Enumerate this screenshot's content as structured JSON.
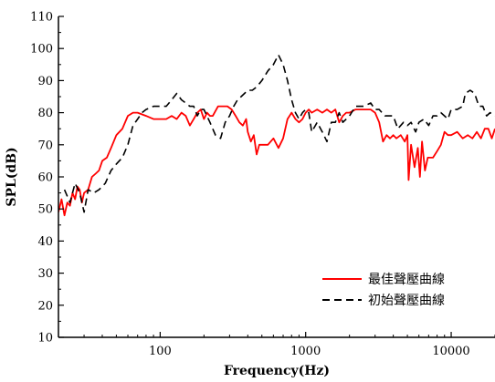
{
  "chart_data": {
    "type": "line",
    "title": "",
    "xlabel": "Frequency(Hz)",
    "ylabel": "SPL(dB)",
    "xscale": "log",
    "xlim": [
      20,
      20000
    ],
    "ylim": [
      10,
      110
    ],
    "x_ticks": [
      {
        "value": 100,
        "label": "100"
      },
      {
        "value": 1000,
        "label": "1000"
      },
      {
        "value": 10000,
        "label": "10000"
      }
    ],
    "y_ticks": [
      10,
      20,
      30,
      40,
      50,
      60,
      70,
      80,
      90,
      100,
      110
    ],
    "grid": false,
    "legend_position": "bottom-right",
    "series": [
      {
        "name": "最佳聲壓曲線",
        "color": "#ff0000",
        "dash": "solid",
        "points": [
          [
            20,
            49
          ],
          [
            21,
            53
          ],
          [
            22,
            48
          ],
          [
            23,
            52
          ],
          [
            24,
            51
          ],
          [
            25,
            55
          ],
          [
            26,
            53
          ],
          [
            27,
            57
          ],
          [
            28,
            56
          ],
          [
            29,
            52
          ],
          [
            30,
            55
          ],
          [
            32,
            56
          ],
          [
            34,
            60
          ],
          [
            36,
            61
          ],
          [
            38,
            62
          ],
          [
            40,
            65
          ],
          [
            43,
            66
          ],
          [
            46,
            69
          ],
          [
            50,
            73
          ],
          [
            55,
            75
          ],
          [
            60,
            79
          ],
          [
            65,
            80
          ],
          [
            70,
            80
          ],
          [
            80,
            79
          ],
          [
            90,
            78
          ],
          [
            100,
            78
          ],
          [
            110,
            78
          ],
          [
            120,
            79
          ],
          [
            130,
            78
          ],
          [
            140,
            80
          ],
          [
            150,
            79
          ],
          [
            160,
            76
          ],
          [
            170,
            78
          ],
          [
            180,
            80
          ],
          [
            190,
            81
          ],
          [
            200,
            78
          ],
          [
            210,
            80
          ],
          [
            220,
            79
          ],
          [
            230,
            79
          ],
          [
            250,
            82
          ],
          [
            270,
            82
          ],
          [
            290,
            82
          ],
          [
            310,
            81
          ],
          [
            330,
            79
          ],
          [
            350,
            77
          ],
          [
            370,
            76
          ],
          [
            390,
            78
          ],
          [
            400,
            74
          ],
          [
            420,
            71
          ],
          [
            440,
            73
          ],
          [
            460,
            67
          ],
          [
            480,
            70
          ],
          [
            500,
            70
          ],
          [
            550,
            70
          ],
          [
            600,
            72
          ],
          [
            650,
            69
          ],
          [
            700,
            72
          ],
          [
            750,
            78
          ],
          [
            800,
            80
          ],
          [
            850,
            78
          ],
          [
            900,
            77
          ],
          [
            950,
            78
          ],
          [
            1000,
            80
          ],
          [
            1050,
            81
          ],
          [
            1100,
            80
          ],
          [
            1200,
            81
          ],
          [
            1300,
            80
          ],
          [
            1400,
            81
          ],
          [
            1500,
            80
          ],
          [
            1600,
            81
          ],
          [
            1700,
            77
          ],
          [
            1800,
            79
          ],
          [
            1900,
            80
          ],
          [
            2000,
            80
          ],
          [
            2200,
            81
          ],
          [
            2500,
            81
          ],
          [
            2800,
            81
          ],
          [
            3000,
            80
          ],
          [
            3200,
            77
          ],
          [
            3400,
            71
          ],
          [
            3600,
            73
          ],
          [
            3800,
            72
          ],
          [
            4000,
            73
          ],
          [
            4200,
            72
          ],
          [
            4500,
            73
          ],
          [
            4800,
            71
          ],
          [
            5000,
            73
          ],
          [
            5100,
            59
          ],
          [
            5300,
            70
          ],
          [
            5600,
            63
          ],
          [
            5900,
            69
          ],
          [
            6100,
            60
          ],
          [
            6300,
            71
          ],
          [
            6600,
            62
          ],
          [
            6900,
            66
          ],
          [
            7200,
            66
          ],
          [
            7500,
            66
          ],
          [
            8000,
            68
          ],
          [
            8500,
            70
          ],
          [
            9000,
            74
          ],
          [
            9500,
            73
          ],
          [
            10000,
            73
          ],
          [
            11000,
            74
          ],
          [
            12000,
            72
          ],
          [
            13000,
            73
          ],
          [
            14000,
            72
          ],
          [
            15000,
            74
          ],
          [
            16000,
            72
          ],
          [
            17000,
            75
          ],
          [
            18000,
            75
          ],
          [
            19000,
            72
          ],
          [
            20000,
            75
          ]
        ]
      },
      {
        "name": "初始聲壓曲線",
        "color": "#000000",
        "dash": "8,5",
        "points": [
          [
            22,
            56
          ],
          [
            24,
            52
          ],
          [
            26,
            58
          ],
          [
            28,
            55
          ],
          [
            30,
            49
          ],
          [
            32,
            56
          ],
          [
            35,
            55
          ],
          [
            38,
            56
          ],
          [
            42,
            58
          ],
          [
            46,
            62
          ],
          [
            50,
            64
          ],
          [
            55,
            66
          ],
          [
            60,
            70
          ],
          [
            65,
            76
          ],
          [
            70,
            78
          ],
          [
            75,
            80
          ],
          [
            80,
            81
          ],
          [
            90,
            82
          ],
          [
            100,
            82
          ],
          [
            110,
            82
          ],
          [
            120,
            84
          ],
          [
            130,
            86
          ],
          [
            140,
            84
          ],
          [
            150,
            83
          ],
          [
            160,
            82
          ],
          [
            170,
            82
          ],
          [
            180,
            79
          ],
          [
            190,
            81
          ],
          [
            200,
            81
          ],
          [
            220,
            77
          ],
          [
            240,
            73
          ],
          [
            260,
            72
          ],
          [
            280,
            77
          ],
          [
            300,
            79
          ],
          [
            320,
            82
          ],
          [
            340,
            84
          ],
          [
            360,
            85
          ],
          [
            380,
            86
          ],
          [
            400,
            87
          ],
          [
            430,
            87
          ],
          [
            460,
            88
          ],
          [
            500,
            90
          ],
          [
            550,
            93
          ],
          [
            600,
            95
          ],
          [
            650,
            98
          ],
          [
            700,
            95
          ],
          [
            750,
            90
          ],
          [
            800,
            84
          ],
          [
            850,
            80
          ],
          [
            900,
            78
          ],
          [
            950,
            80
          ],
          [
            1000,
            81
          ],
          [
            1050,
            80
          ],
          [
            1100,
            74
          ],
          [
            1200,
            77
          ],
          [
            1300,
            74
          ],
          [
            1400,
            71
          ],
          [
            1500,
            77
          ],
          [
            1600,
            77
          ],
          [
            1700,
            80
          ],
          [
            1800,
            77
          ],
          [
            2000,
            79
          ],
          [
            2200,
            82
          ],
          [
            2500,
            82
          ],
          [
            2800,
            83
          ],
          [
            3000,
            81
          ],
          [
            3200,
            81
          ],
          [
            3500,
            79
          ],
          [
            4000,
            79
          ],
          [
            4300,
            75
          ],
          [
            4700,
            77
          ],
          [
            5000,
            76
          ],
          [
            5300,
            77
          ],
          [
            5700,
            74
          ],
          [
            6000,
            77
          ],
          [
            6500,
            78
          ],
          [
            7000,
            76
          ],
          [
            7500,
            79
          ],
          [
            8000,
            79
          ],
          [
            8500,
            80
          ],
          [
            9000,
            79
          ],
          [
            9500,
            78
          ],
          [
            10000,
            81
          ],
          [
            11000,
            81
          ],
          [
            12000,
            82
          ],
          [
            12500,
            86
          ],
          [
            13500,
            87
          ],
          [
            14500,
            86
          ],
          [
            15500,
            82
          ],
          [
            16500,
            82
          ],
          [
            17500,
            79
          ],
          [
            18500,
            80
          ],
          [
            20000,
            79
          ]
        ]
      }
    ]
  }
}
